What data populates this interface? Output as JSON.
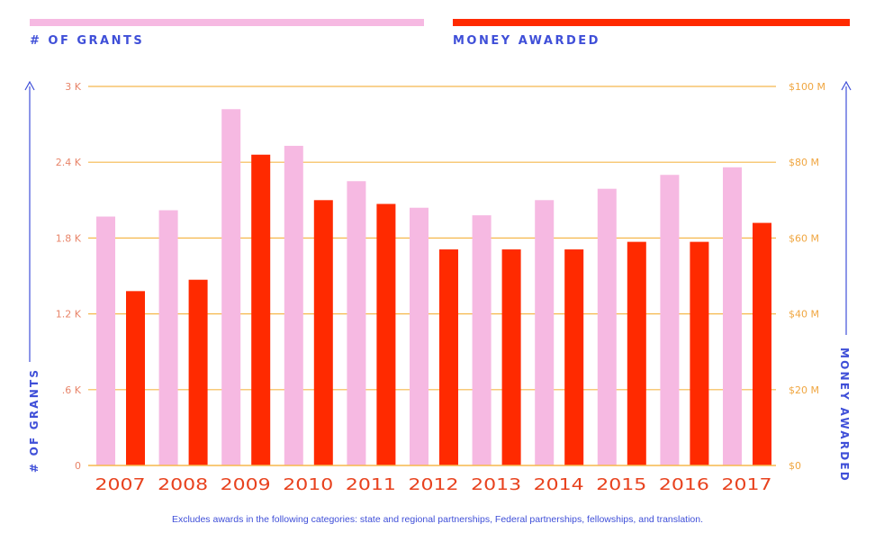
{
  "legend": {
    "grants_label": "# OF GRANTS",
    "money_label": "MONEY AWARDED"
  },
  "colors": {
    "grants": "#f6b9e2",
    "money": "#ff2a00",
    "axis_blue": "#3f4fd8",
    "grid": "#f5b84d",
    "tick_left": "#e8856a",
    "tick_right": "#f0a640",
    "year": "#e8421e"
  },
  "footnote": "Excludes awards in the following categories: state and regional partnerships, Federal partnerships, fellowships, and translation.",
  "chart_data": {
    "type": "bar",
    "categories": [
      "2007",
      "2008",
      "2009",
      "2010",
      "2011",
      "2012",
      "2013",
      "2014",
      "2015",
      "2016",
      "2017"
    ],
    "series": [
      {
        "name": "# OF GRANTS",
        "axis": "left",
        "values": [
          1970,
          2020,
          2820,
          2530,
          2250,
          2040,
          1980,
          2100,
          2190,
          2300,
          2360
        ]
      },
      {
        "name": "MONEY AWARDED",
        "axis": "right",
        "values": [
          46,
          49,
          82,
          70,
          69,
          57,
          57,
          57,
          59,
          59,
          64
        ]
      }
    ],
    "y_left": {
      "label": "# OF GRANTS",
      "ylim": [
        0,
        3000
      ],
      "ticks": [
        0,
        600,
        1200,
        1800,
        2400,
        3000
      ],
      "tick_labels": [
        "0",
        ".6 K",
        "1.2 K",
        "1.8 K",
        "2.4 K",
        "3 K"
      ]
    },
    "y_right": {
      "label": "MONEY AWARDED",
      "ylim": [
        0,
        100
      ],
      "ticks": [
        0,
        20,
        40,
        60,
        80,
        100
      ],
      "tick_labels": [
        "$0",
        "$20 M",
        "$40 M",
        "$60 M",
        "$80 M",
        "$100 M"
      ]
    },
    "grid": true,
    "legend_position": "top"
  }
}
